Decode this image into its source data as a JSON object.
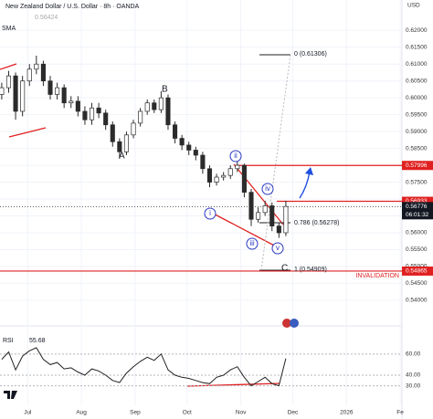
{
  "chart_data": [
    {
      "type": "candlestick",
      "title": "New Zealand Dollar / U.S. Dollar · 8h · OANDA",
      "subtitle": "0.56424",
      "indicator": "SMA",
      "currency": "USD",
      "color": "#2b2b2b",
      "x": [
        -15,
        -11,
        -7,
        -3,
        1,
        5,
        9,
        13,
        17,
        21,
        25,
        29,
        33,
        37,
        41,
        45,
        49,
        53,
        57,
        61,
        65,
        69,
        73,
        77,
        81,
        85,
        89,
        93,
        97,
        101,
        105,
        109,
        113,
        117,
        121,
        125,
        129,
        133,
        137,
        141,
        145,
        149
      ],
      "open": [
        0.601,
        0.603,
        0.6065,
        0.596,
        0.605,
        0.6085,
        0.61,
        0.605,
        0.601,
        0.603,
        0.5985,
        0.599,
        0.596,
        0.5935,
        0.597,
        0.5955,
        0.592,
        0.587,
        0.584,
        0.589,
        0.5925,
        0.596,
        0.5985,
        0.5965,
        0.6,
        0.592,
        0.588,
        0.586,
        0.5845,
        0.583,
        0.579,
        0.575,
        0.5765,
        0.577,
        0.579,
        0.58,
        0.572,
        0.564,
        0.566,
        0.568,
        0.562,
        0.56
      ],
      "high": [
        0.6045,
        0.608,
        0.6075,
        0.6065,
        0.61,
        0.6125,
        0.611,
        0.6065,
        0.6045,
        0.604,
        0.6005,
        0.6005,
        0.5975,
        0.5985,
        0.5985,
        0.5965,
        0.593,
        0.588,
        0.59,
        0.5935,
        0.597,
        0.5995,
        0.5995,
        0.602,
        0.601,
        0.593,
        0.589,
        0.587,
        0.5855,
        0.584,
        0.58,
        0.5775,
        0.578,
        0.58,
        0.5812,
        0.5805,
        0.573,
        0.5675,
        0.5695,
        0.569,
        0.563,
        0.5695
      ],
      "low": [
        0.5995,
        0.6015,
        0.5935,
        0.5945,
        0.6035,
        0.607,
        0.6035,
        0.5995,
        0.5995,
        0.597,
        0.597,
        0.5945,
        0.592,
        0.592,
        0.594,
        0.5905,
        0.5855,
        0.582,
        0.583,
        0.588,
        0.5915,
        0.595,
        0.5955,
        0.5955,
        0.5905,
        0.5865,
        0.5845,
        0.583,
        0.5815,
        0.5775,
        0.5735,
        0.574,
        0.5755,
        0.576,
        0.578,
        0.5705,
        0.562,
        0.563,
        0.565,
        0.5605,
        0.5585,
        0.559
      ],
      "close": [
        0.603,
        0.6065,
        0.596,
        0.605,
        0.6085,
        0.61,
        0.605,
        0.601,
        0.603,
        0.5985,
        0.599,
        0.596,
        0.5935,
        0.597,
        0.5955,
        0.592,
        0.587,
        0.584,
        0.589,
        0.5925,
        0.596,
        0.5985,
        0.5965,
        0.6,
        0.592,
        0.588,
        0.586,
        0.5845,
        0.583,
        0.579,
        0.575,
        0.5765,
        0.577,
        0.579,
        0.58,
        0.572,
        0.564,
        0.566,
        0.568,
        0.562,
        0.56,
        0.5678
      ],
      "xlim": [
        -16,
        216
      ],
      "xticks": [
        {
          "value": 0,
          "label": "Jul"
        },
        {
          "value": 31,
          "label": "Aug"
        },
        {
          "value": 62,
          "label": "Sep"
        },
        {
          "value": 92,
          "label": "Oct"
        },
        {
          "value": 123,
          "label": "Nov"
        },
        {
          "value": 153,
          "label": "Dec"
        },
        {
          "value": 184,
          "label": "2026"
        },
        {
          "value": 215,
          "label": "Fe"
        }
      ],
      "ylim": [
        0.537,
        0.629
      ],
      "yticks": [
        {
          "value": 0.62,
          "label": "0.62000"
        },
        {
          "value": 0.615,
          "label": "0.61500"
        },
        {
          "value": 0.61,
          "label": "0.61000"
        },
        {
          "value": 0.605,
          "label": "0.60500"
        },
        {
          "value": 0.6,
          "label": "0.60000"
        },
        {
          "value": 0.595,
          "label": "0.59500"
        },
        {
          "value": 0.59,
          "label": "0.59000"
        },
        {
          "value": 0.585,
          "label": "0.58500"
        },
        {
          "value": 0.58,
          "label": "0.58000"
        },
        {
          "value": 0.575,
          "label": "0.57500"
        },
        {
          "value": 0.57,
          "label": "0.57000"
        },
        {
          "value": 0.565,
          "label": "0.56500"
        },
        {
          "value": 0.56,
          "label": "0.56000"
        },
        {
          "value": 0.555,
          "label": "0.55500"
        },
        {
          "value": 0.55,
          "label": "0.55000"
        },
        {
          "value": 0.545,
          "label": "0.54500"
        },
        {
          "value": 0.54,
          "label": "0.54000"
        }
      ],
      "grid": true,
      "price_lines": [
        0.57996,
        0.56933,
        0.54865
      ],
      "price_line_color": "#e02020",
      "last_price": 0.56776,
      "countdown": "06:01:32",
      "wave_labels": [
        "A",
        "B",
        "C"
      ],
      "sub_wave_labels": [
        "i",
        "ii",
        "iii",
        "iv",
        "v"
      ],
      "fib_labels": [
        "0 (0.61306)",
        "0.786 (0.56278)",
        "1 (0.54909)"
      ],
      "invalidation": "INVALIDATION"
    },
    {
      "type": "line",
      "title": "RSI",
      "last_value": 55.68,
      "color": "#222222",
      "values": [
        55,
        62,
        45,
        58,
        63,
        66,
        55,
        50,
        52,
        46,
        47,
        43,
        40,
        46,
        44,
        40,
        35,
        33,
        42,
        48,
        53,
        57,
        54,
        60,
        45,
        40,
        38,
        37,
        35,
        33,
        32,
        38,
        40,
        45,
        48,
        38,
        30,
        34,
        38,
        32,
        30,
        55.68
      ],
      "ylim": [
        15,
        84
      ],
      "yticks": [
        {
          "value": 60,
          "label": "60.00"
        },
        {
          "value": 40,
          "label": "40.00"
        },
        {
          "value": 30,
          "label": "30.00"
        }
      ]
    }
  ]
}
